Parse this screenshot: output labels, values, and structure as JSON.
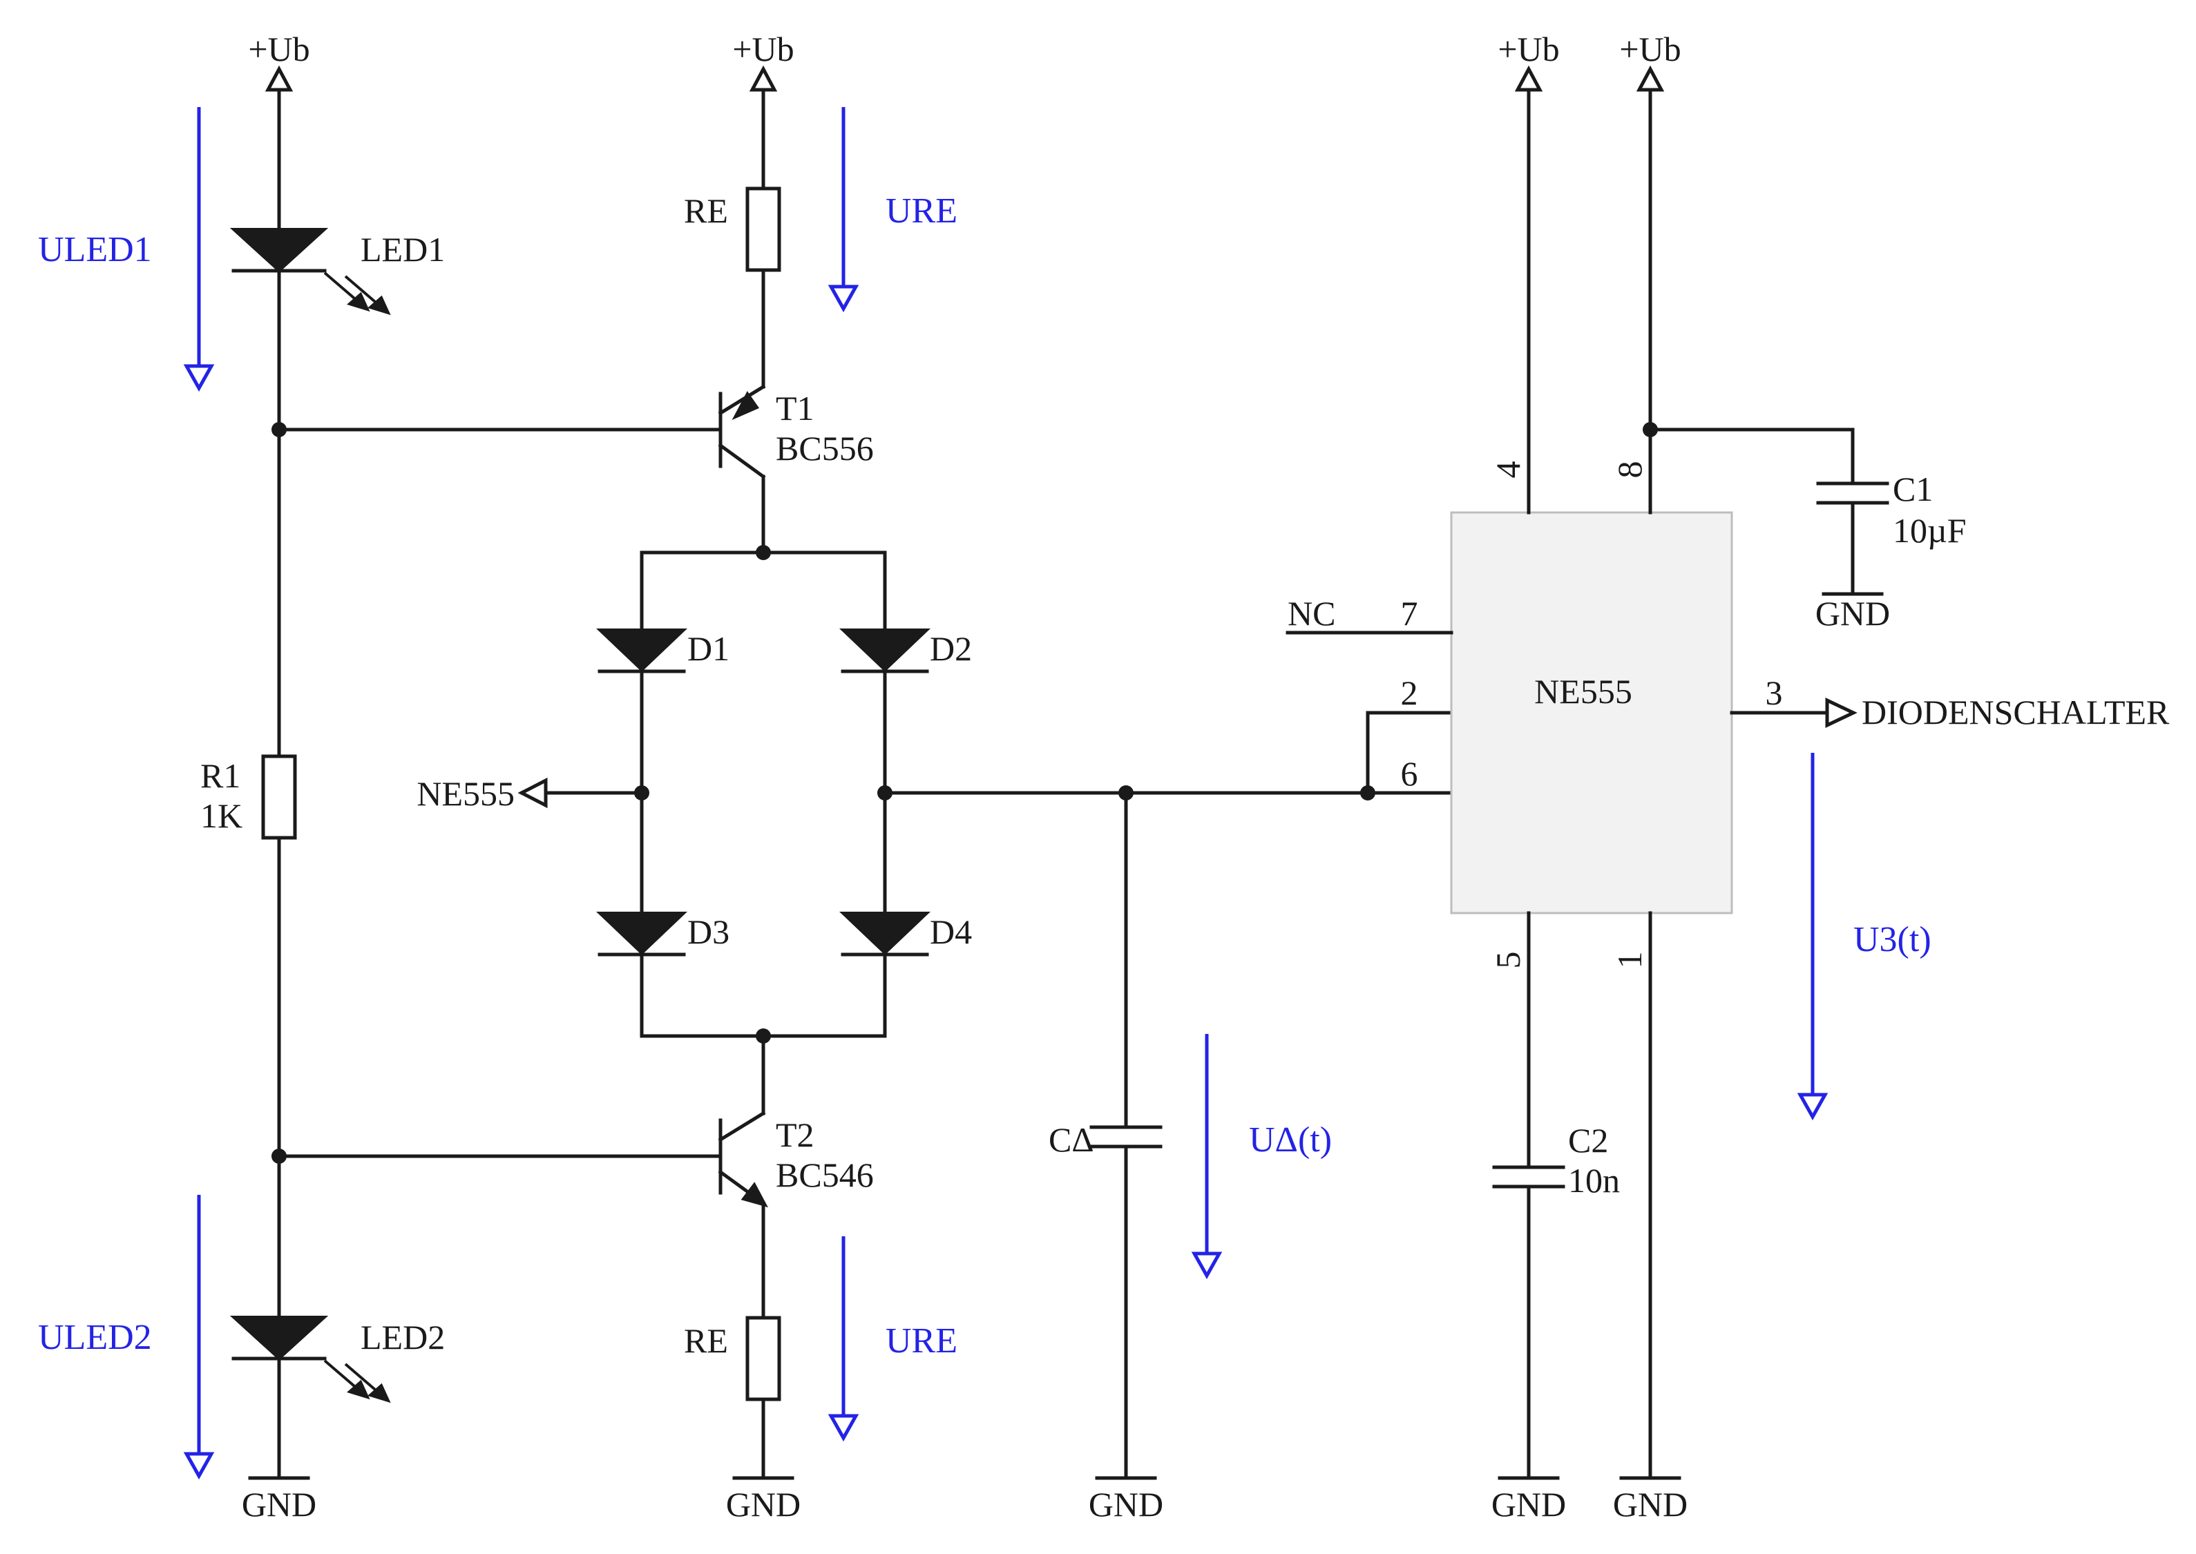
{
  "rails": {
    "vcc": "+Ub",
    "gnd": "GND"
  },
  "components": {
    "led1": "LED1",
    "led2": "LED2",
    "re_top": "RE",
    "re_bottom": "RE",
    "t1_name": "T1",
    "t1_part": "BC556",
    "t2_name": "T2",
    "t2_part": "BC546",
    "d1": "D1",
    "d2": "D2",
    "d3": "D3",
    "d4": "D4",
    "r1_name": "R1",
    "r1_value": "1K",
    "ne555_port": "NE555",
    "c_delta": "CΔ",
    "c1_name": "C1",
    "c1_value": "10µF",
    "c2_name": "C2",
    "c2_value": "10n",
    "ic_name": "NE555",
    "nc": "NC",
    "output": "DIODENSCHALTER"
  },
  "pins": {
    "p4": "4",
    "p8": "8",
    "p7": "7",
    "p2": "2",
    "p6": "6",
    "p3": "3",
    "p5": "5",
    "p1": "1"
  },
  "voltages": {
    "uled1": "ULED1",
    "uled2": "ULED2",
    "ure_top": "URE",
    "ure_bottom": "URE",
    "udelta": "UΔ(t)",
    "u3": "U3(t)"
  }
}
